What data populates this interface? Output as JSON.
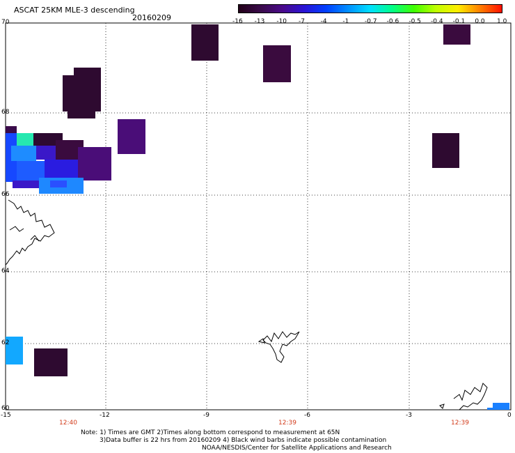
{
  "header": {
    "title": "ASCAT 25KM MLE-3 descending",
    "date": "20160209"
  },
  "colorbar": {
    "labels": [
      "-16",
      "-13",
      "-10",
      "-7",
      "-4",
      "-1",
      "-0.7",
      "-0.6",
      "-0.5",
      "-0.4",
      "-0.1",
      "0.0",
      "1.0"
    ],
    "colors": [
      "#220018",
      "#3a0b4a",
      "#4a0a8a",
      "#2a14d6",
      "#0040ff",
      "#0090ff",
      "#00e0ff",
      "#00ff88",
      "#40ff00",
      "#c0ff00",
      "#ffee00",
      "#ff8000",
      "#ff1000"
    ]
  },
  "map": {
    "lat_labels": [
      "70",
      "68",
      "66",
      "64",
      "62",
      "60"
    ],
    "lon_labels": [
      "-15",
      "-12",
      "-9",
      "-6",
      "-3",
      "0"
    ],
    "time_labels": [
      "12:40",
      "12:39",
      "12:39"
    ],
    "colors": {
      "deep": "#2e0a30",
      "purple": "#4a0d78",
      "violet": "#5a0c96",
      "blue": "#1648ff",
      "lightblue": "#12a8ff",
      "cyan": "#26e8b0",
      "darkblue": "#2233e0"
    }
  },
  "notes": {
    "line1": "Note: 1) Times are GMT 2)Times along bottom correspond to measurement at 65N",
    "line2": "3)Data buffer is 22 hrs from 20160209 4) Black wind barbs indicate possible contamination",
    "line3": "NOAA/NESDIS/Center for Satellite Applications and Research"
  }
}
